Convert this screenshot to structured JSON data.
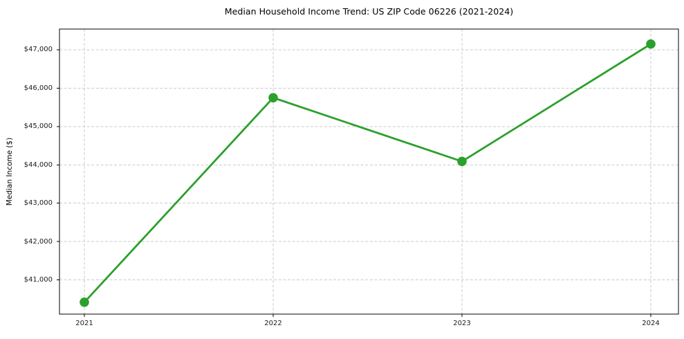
{
  "chart_data": {
    "type": "line",
    "title": "Median Household Income Trend: US ZIP Code 06226 (2021-2024)",
    "xlabel": "",
    "ylabel": "Median Income ($)",
    "categories": [
      "2021",
      "2022",
      "2023",
      "2024"
    ],
    "series": [
      {
        "name": "Median Household Income",
        "values": [
          40420,
          45750,
          44090,
          47150
        ],
        "color": "#2ca02c",
        "marker": "circle",
        "line_style": "solid"
      }
    ],
    "ylim": [
      40110,
      47540
    ],
    "yticks": [
      {
        "value": 41000,
        "label": "$41,000"
      },
      {
        "value": 42000,
        "label": "$42,000"
      },
      {
        "value": 43000,
        "label": "$43,000"
      },
      {
        "value": 44000,
        "label": "$44,000"
      },
      {
        "value": 45000,
        "label": "$45,000"
      },
      {
        "value": 46000,
        "label": "$46,000"
      },
      {
        "value": 47000,
        "label": "$47,000"
      }
    ],
    "grid": {
      "visible": true,
      "line_style": "dashed",
      "color": "#cbcbcb"
    },
    "legend": "none",
    "colors": {
      "line": "#2ca02c",
      "axis": "#000000",
      "tick_label": "#1a1a1a",
      "grid": "#cbcbcb",
      "background": "#ffffff"
    }
  }
}
